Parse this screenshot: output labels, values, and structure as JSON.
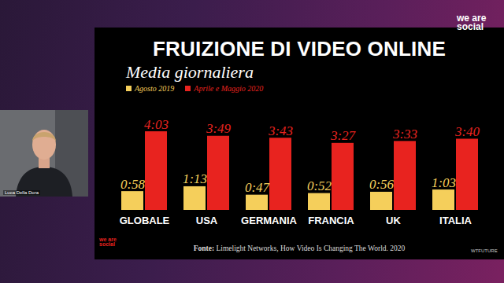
{
  "chart_data": {
    "type": "bar",
    "title": "FRUIZIONE DI VIDEO ONLINE",
    "subtitle": "Media giornaliera",
    "caption": "Fonte: Limelight Networks, How Video Is Changing The World. 2020",
    "categories": [
      "GLOBALE",
      "USA",
      "GERMANIA",
      "FRANCIA",
      "UK",
      "ITALIA"
    ],
    "series": [
      {
        "name": "Agosto 2019",
        "color": "#f5cf5b",
        "values": [
          58,
          73,
          47,
          52,
          56,
          63
        ],
        "value_labels": [
          "0:58",
          "1:13",
          "0:47",
          "0:52",
          "0:56",
          "1:03"
        ]
      },
      {
        "name": "Aprile e Maggio 2020",
        "color": "#e8231f",
        "values": [
          243,
          229,
          223,
          207,
          213,
          220
        ],
        "value_labels": [
          "4:03",
          "3:49",
          "3:43",
          "3:27",
          "3:33",
          "3:40"
        ]
      }
    ],
    "legend": "top",
    "data_labels": true,
    "tick_labels": "x"
  },
  "page": {
    "logos": [
      "we are social",
      "we are social"
    ],
    "badge": "WTFUTURE",
    "speaker": "Luca Della Dora"
  }
}
